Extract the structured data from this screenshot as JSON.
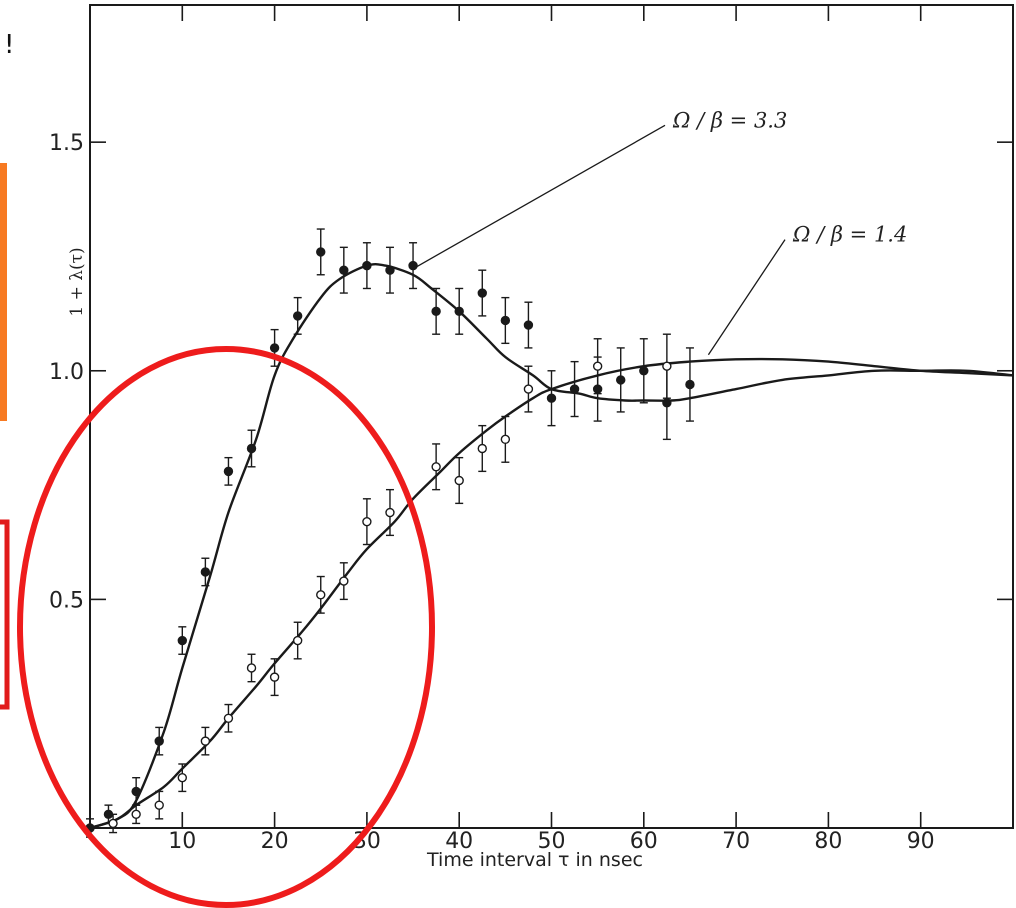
{
  "chart_data": {
    "type": "scatter",
    "title": "",
    "xlabel": "Time interval τ in nsec",
    "ylabel": "1 + λ(τ)",
    "xlim": [
      0,
      100
    ],
    "ylim": [
      0,
      1.8
    ],
    "xticks": [
      10,
      20,
      30,
      40,
      50,
      60,
      70,
      80,
      90
    ],
    "yticks": [
      0.5,
      1.0,
      1.5
    ],
    "ytick_labels": [
      "0.5",
      "1.0",
      "1.5"
    ],
    "grid": false,
    "series": [
      {
        "marker": "filled-circle",
        "x": [
          0,
          2,
          5,
          7.5,
          10,
          12.5,
          15,
          17.5,
          20,
          22.5,
          25,
          27.5,
          30,
          32.5,
          35,
          37.5,
          40,
          42.5,
          45,
          47.5,
          50,
          52.5,
          55,
          57.5,
          60,
          62.5,
          65
        ],
        "y": [
          0.0,
          0.03,
          0.08,
          0.19,
          0.41,
          0.56,
          0.78,
          0.83,
          1.05,
          1.12,
          1.26,
          1.22,
          1.23,
          1.22,
          1.23,
          1.13,
          1.13,
          1.17,
          1.11,
          1.1,
          0.94,
          0.96,
          0.96,
          0.98,
          1.0,
          0.93,
          0.97
        ],
        "err": [
          0.02,
          0.02,
          0.03,
          0.03,
          0.03,
          0.03,
          0.03,
          0.04,
          0.04,
          0.04,
          0.05,
          0.05,
          0.05,
          0.05,
          0.05,
          0.05,
          0.05,
          0.05,
          0.05,
          0.05,
          0.06,
          0.06,
          0.07,
          0.07,
          0.07,
          0.08,
          0.08
        ]
      },
      {
        "marker": "open-circle",
        "x": [
          2.5,
          5,
          7.5,
          10,
          12.5,
          15,
          17.5,
          20,
          22.5,
          25,
          27.5,
          30,
          32.5,
          37.5,
          40,
          42.5,
          45,
          47.5,
          55,
          62.5
        ],
        "y": [
          0.01,
          0.03,
          0.05,
          0.11,
          0.19,
          0.24,
          0.35,
          0.33,
          0.41,
          0.51,
          0.54,
          0.67,
          0.69,
          0.79,
          0.76,
          0.83,
          0.85,
          0.96,
          1.01,
          1.01
        ],
        "err": [
          0.02,
          0.02,
          0.03,
          0.03,
          0.03,
          0.03,
          0.03,
          0.04,
          0.04,
          0.04,
          0.04,
          0.05,
          0.05,
          0.05,
          0.05,
          0.05,
          0.05,
          0.05,
          0.06,
          0.07
        ]
      }
    ],
    "curves": [
      {
        "label": "Ω / β = 3.3",
        "x": [
          0,
          3,
          5,
          8,
          10,
          13,
          15,
          18,
          20,
          22,
          25,
          27,
          30,
          32,
          35,
          37,
          40,
          43,
          45,
          48,
          50,
          53,
          55,
          58,
          60,
          63,
          65,
          70,
          75,
          80,
          85,
          90,
          95,
          100
        ],
        "y": [
          0.0,
          0.02,
          0.06,
          0.21,
          0.35,
          0.55,
          0.69,
          0.85,
          0.99,
          1.07,
          1.16,
          1.2,
          1.23,
          1.23,
          1.21,
          1.18,
          1.13,
          1.07,
          1.03,
          0.99,
          0.96,
          0.95,
          0.94,
          0.935,
          0.935,
          0.935,
          0.94,
          0.96,
          0.98,
          0.99,
          1.0,
          1.0,
          1.0,
          0.99
        ],
        "label_x": 61,
        "label_y": 1.55
      },
      {
        "label": "Ω / β = 1.4",
        "x": [
          0,
          3,
          5,
          8,
          10,
          13,
          15,
          18,
          20,
          23,
          25,
          28,
          30,
          33,
          35,
          38,
          40,
          43,
          45,
          48,
          50,
          55,
          60,
          65,
          70,
          75,
          80,
          85,
          90,
          95,
          100
        ],
        "y": [
          0.0,
          0.02,
          0.05,
          0.09,
          0.13,
          0.19,
          0.24,
          0.31,
          0.36,
          0.43,
          0.48,
          0.56,
          0.61,
          0.67,
          0.72,
          0.78,
          0.82,
          0.87,
          0.9,
          0.94,
          0.96,
          0.99,
          1.01,
          1.02,
          1.025,
          1.025,
          1.02,
          1.01,
          1.0,
          0.995,
          0.99
        ],
        "label_x": 74,
        "label_y": 1.3
      }
    ]
  },
  "overlay_text": {
    "fragment_exclaim": "!"
  },
  "colors": {
    "highlight_ellipse": "#ee1c1c",
    "orange_box": "#f77a22",
    "red_box": "#e11a1a",
    "ink": "#1a1a1a"
  }
}
